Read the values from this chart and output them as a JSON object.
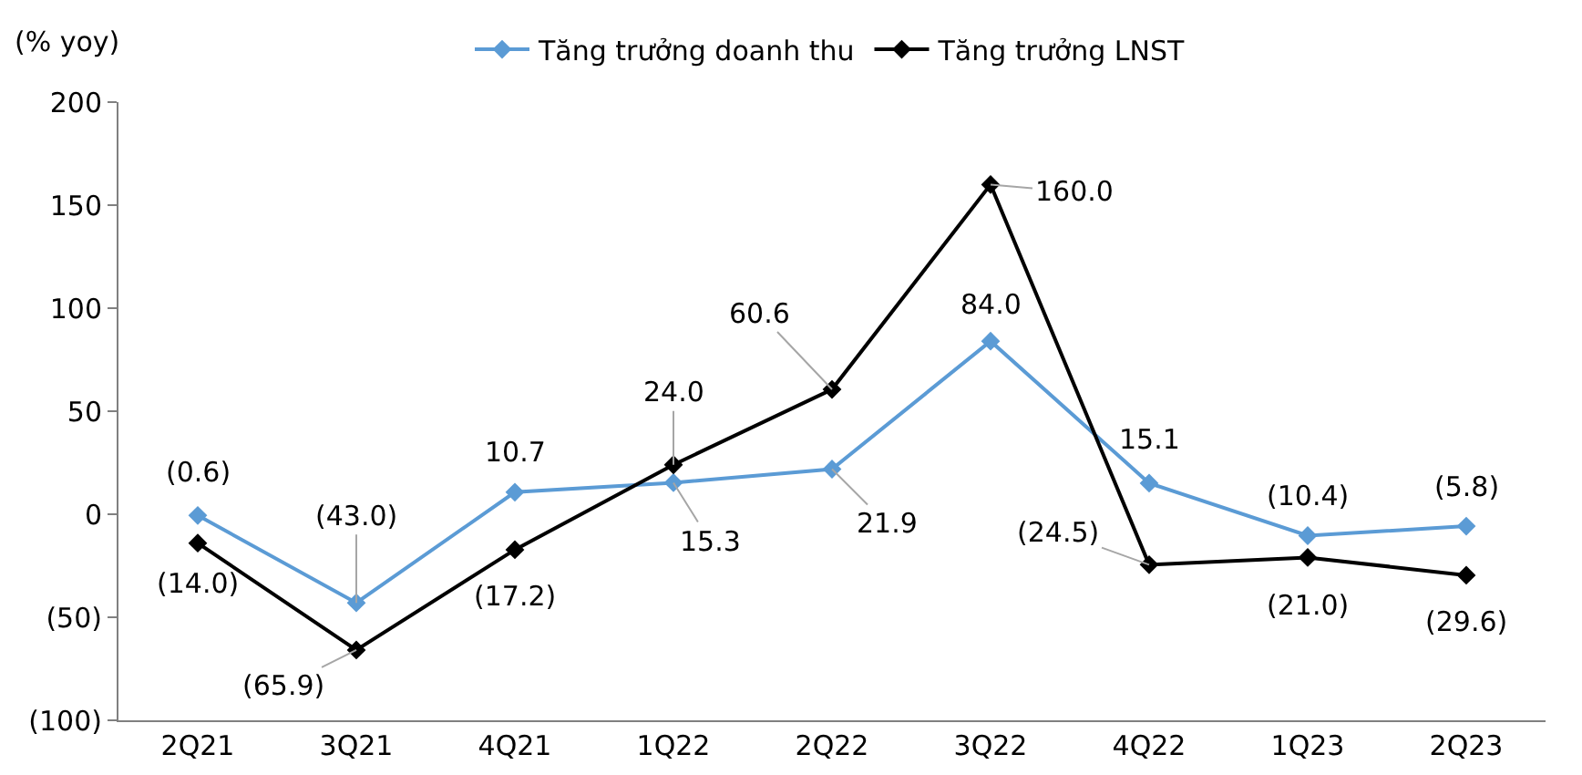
{
  "chart_data": {
    "type": "line",
    "ylabel": "(% yoy)",
    "categories": [
      "2Q21",
      "3Q21",
      "4Q21",
      "1Q22",
      "2Q22",
      "3Q22",
      "4Q22",
      "1Q23",
      "2Q23"
    ],
    "series": [
      {
        "name": "Tăng trưởng doanh thu",
        "color": "#5b9bd5",
        "values": [
          -0.6,
          -43.0,
          10.7,
          15.3,
          21.9,
          84.0,
          15.1,
          -10.4,
          -5.8
        ],
        "value_labels": [
          "(0.6)",
          "(43.0)",
          "10.7",
          "15.3",
          "21.9",
          "84.0",
          "15.1",
          "(10.4)",
          "(5.8)"
        ]
      },
      {
        "name": "Tăng trưởng LNST",
        "color": "#000000",
        "values": [
          -14.0,
          -65.9,
          -17.2,
          24.0,
          60.6,
          160.0,
          -24.5,
          -21.0,
          -29.6
        ],
        "value_labels": [
          "(14.0)",
          "(65.9)",
          "(17.2)",
          "24.0",
          "60.6",
          "160.0",
          "(24.5)",
          "(21.0)",
          "(29.6)"
        ]
      }
    ],
    "ylim": [
      -100,
      200
    ],
    "yticks": [
      {
        "value": -100,
        "label": "(100)"
      },
      {
        "value": -50,
        "label": "(50)"
      },
      0,
      50,
      100,
      150,
      200
    ],
    "grid": false,
    "legend": "top",
    "marker": "diamond",
    "line_style": "solid"
  }
}
